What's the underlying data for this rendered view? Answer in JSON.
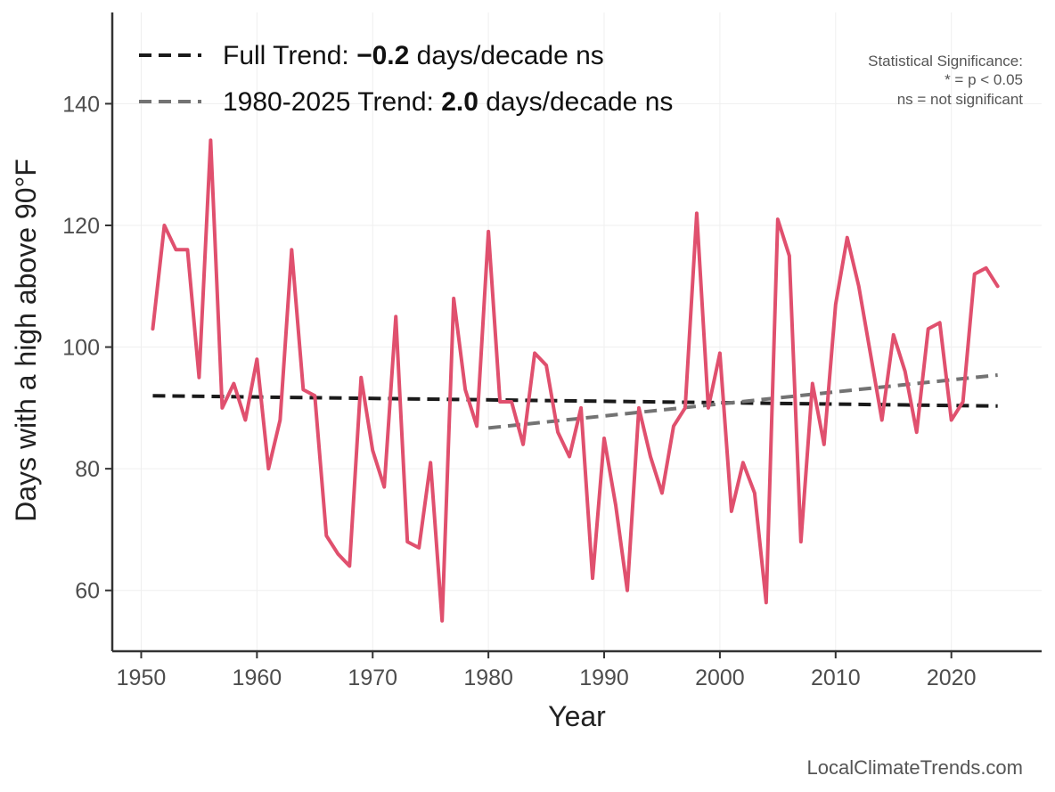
{
  "chart_data": {
    "type": "line",
    "xlabel": "Year",
    "ylabel": "Days with a high above 90°F",
    "xlim": [
      1947.5,
      2027.8
    ],
    "ylim": [
      50,
      155
    ],
    "x_ticks": [
      1950,
      1960,
      1970,
      1980,
      1990,
      2000,
      2010,
      2020
    ],
    "y_ticks": [
      60,
      80,
      100,
      120,
      140
    ],
    "grid": true,
    "legend_position": "top-left",
    "series": [
      {
        "color": "#e0506e",
        "x": [
          1951,
          1952,
          1953,
          1954,
          1955,
          1956,
          1957,
          1958,
          1959,
          1960,
          1961,
          1962,
          1963,
          1964,
          1965,
          1966,
          1967,
          1968,
          1969,
          1970,
          1971,
          1972,
          1973,
          1974,
          1975,
          1976,
          1977,
          1978,
          1979,
          1980,
          1981,
          1982,
          1983,
          1984,
          1985,
          1986,
          1987,
          1988,
          1989,
          1990,
          1991,
          1992,
          1993,
          1994,
          1995,
          1996,
          1997,
          1998,
          1999,
          2000,
          2001,
          2002,
          2003,
          2004,
          2005,
          2006,
          2007,
          2008,
          2009,
          2010,
          2011,
          2012,
          2013,
          2014,
          2015,
          2016,
          2017,
          2018,
          2019,
          2020,
          2021,
          2022,
          2023,
          2024
        ],
        "values": [
          103,
          120,
          116,
          116,
          95,
          134,
          90,
          94,
          88,
          98,
          80,
          88,
          116,
          93,
          92,
          69,
          66,
          64,
          95,
          83,
          77,
          105,
          68,
          67,
          81,
          55,
          108,
          93,
          87,
          119,
          91,
          91,
          84,
          99,
          97,
          86,
          82,
          90,
          62,
          85,
          74,
          60,
          90,
          82,
          76,
          87,
          90,
          122,
          90,
          99,
          73,
          81,
          76,
          58,
          121,
          115,
          68,
          94,
          84,
          107,
          118,
          110,
          99,
          88,
          102,
          96,
          86,
          103,
          104,
          88,
          91,
          112,
          113,
          110
        ]
      }
    ],
    "trends": [
      {
        "label_prefix": "Full Trend: ",
        "value": "−0.2",
        "label_suffix": " days/decade ns",
        "color": "#1a1a1a",
        "x": [
          1951,
          2024
        ],
        "y": [
          92.0,
          90.3
        ]
      },
      {
        "label_prefix": "1980-2025 Trend: ",
        "value": "2.0",
        "label_suffix": " days/decade ns",
        "color": "#737373",
        "x": [
          1980,
          2024
        ],
        "y": [
          86.7,
          95.4
        ]
      }
    ]
  },
  "significance_note": {
    "line1": "Statistical Significance:",
    "line2": "* = p < 0.05",
    "line3": "ns = not significant"
  },
  "credit": "LocalClimateTrends.com"
}
